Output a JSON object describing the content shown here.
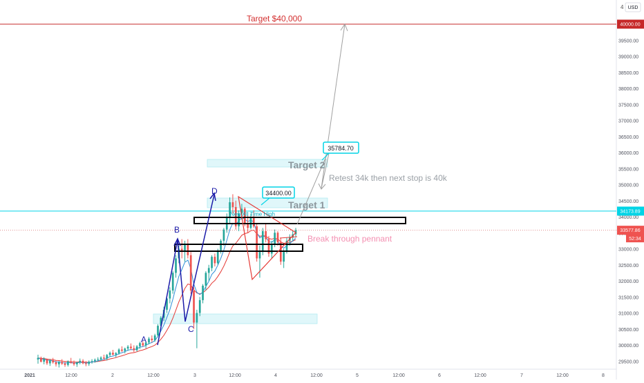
{
  "colors": {
    "up": "#26a69a",
    "down": "#ef5350",
    "ema_fast": "#2e8fd8",
    "ema_slow": "#e53935",
    "target_line": "#c62828",
    "cyan": "#00bcd4",
    "zone_fill": "#e0f7fa",
    "wave": "#1a1aa8",
    "projection": "#9e9e9e",
    "pennant": "#e53935",
    "pennant_text": "#f48fb1"
  },
  "currency_badge": "USD",
  "currency_badge_prefix": "4",
  "price_labels": {
    "target": "40000.00",
    "ath": "34173.89",
    "current": "33577.86",
    "countdown": "52:34"
  },
  "annotations": {
    "target_40k": "Target $40,000",
    "target_2": "Target 2",
    "target_1": "Target 1",
    "retest": "Retest 34k then next stop is 40k",
    "pennant": "Break through pennant",
    "ath_note": "New All Time High",
    "callout_34400": "34400.00",
    "callout_35784": "35784.70",
    "wave_b": "B",
    "wave_c": "C",
    "wave_d": "D",
    "wave_a": "A"
  },
  "chart_data": {
    "type": "candlestick",
    "symbol_currency": "USD",
    "y_ticks": [
      29500,
      30000,
      30500,
      31000,
      31500,
      32000,
      32500,
      33000,
      33500,
      34000,
      34500,
      35000,
      35500,
      36000,
      36500,
      37000,
      37500,
      38000,
      38500,
      39000,
      39500
    ],
    "y_tick_labels": [
      "29500.00",
      "30000.00",
      "30500.00",
      "31000.00",
      "31500.00",
      "32000.00",
      "32500.00",
      "33000.00",
      "33500.00",
      "34000.00",
      "34500.00",
      "35000.00",
      "35500.00",
      "36000.00",
      "36500.00",
      "37000.00",
      "37500.00",
      "38000.00",
      "38500.00",
      "39000.00",
      "39500.00"
    ],
    "ylim": [
      29250,
      40450
    ],
    "x_labels": [
      "2021",
      "12:00",
      "2",
      "12:00",
      "3",
      "12:00",
      "4",
      "12:00",
      "5",
      "12:00",
      "6",
      "12:00",
      "7",
      "12:00",
      "8"
    ],
    "levels": {
      "target": 40000,
      "all_time_high": 34173.89,
      "current_price": 33577.86
    },
    "callouts": [
      34400.0,
      35784.7
    ],
    "candles": [
      [
        29550,
        29700,
        29420,
        29600
      ],
      [
        29600,
        29640,
        29460,
        29480
      ],
      [
        29480,
        29620,
        29400,
        29560
      ],
      [
        29560,
        29580,
        29380,
        29430
      ],
      [
        29430,
        29560,
        29350,
        29520
      ],
      [
        29520,
        29600,
        29420,
        29460
      ],
      [
        29460,
        29520,
        29330,
        29400
      ],
      [
        29400,
        29500,
        29300,
        29470
      ],
      [
        29470,
        29560,
        29380,
        29420
      ],
      [
        29420,
        29480,
        29320,
        29380
      ],
      [
        29380,
        29520,
        29330,
        29490
      ],
      [
        29490,
        29600,
        29420,
        29450
      ],
      [
        29450,
        29520,
        29350,
        29400
      ],
      [
        29400,
        29480,
        29320,
        29460
      ],
      [
        29460,
        29580,
        29400,
        29510
      ],
      [
        29510,
        29560,
        29400,
        29430
      ],
      [
        29430,
        29500,
        29340,
        29410
      ],
      [
        29410,
        29520,
        29350,
        29480
      ],
      [
        29480,
        29560,
        29420,
        29500
      ],
      [
        29500,
        29580,
        29450,
        29540
      ],
      [
        29540,
        29620,
        29480,
        29560
      ],
      [
        29560,
        29650,
        29500,
        29610
      ],
      [
        29610,
        29700,
        29540,
        29580
      ],
      [
        29580,
        29720,
        29520,
        29690
      ],
      [
        29690,
        29800,
        29630,
        29760
      ],
      [
        29760,
        29850,
        29680,
        29700
      ],
      [
        29700,
        29780,
        29620,
        29750
      ],
      [
        29750,
        29900,
        29700,
        29860
      ],
      [
        29860,
        29960,
        29780,
        29820
      ],
      [
        29820,
        29920,
        29740,
        29890
      ],
      [
        29890,
        30000,
        29820,
        29950
      ],
      [
        29950,
        30050,
        29860,
        29900
      ],
      [
        29900,
        29990,
        29780,
        29840
      ],
      [
        29840,
        30000,
        29800,
        29960
      ],
      [
        29960,
        30100,
        29880,
        30060
      ],
      [
        30060,
        30120,
        29950,
        29990
      ],
      [
        29990,
        30100,
        29900,
        30080
      ],
      [
        30080,
        30250,
        30020,
        30200
      ],
      [
        30200,
        30300,
        30080,
        30150
      ],
      [
        30150,
        30350,
        30100,
        30300
      ],
      [
        30300,
        30650,
        30250,
        30600
      ],
      [
        30600,
        30900,
        30500,
        30850
      ],
      [
        30850,
        31200,
        30750,
        31100
      ],
      [
        31100,
        31500,
        31000,
        31450
      ],
      [
        31450,
        31800,
        31300,
        31700
      ],
      [
        31700,
        32300,
        31600,
        32250
      ],
      [
        32250,
        32800,
        32100,
        32700
      ],
      [
        32700,
        33100,
        32550,
        33000
      ],
      [
        33000,
        33300,
        32700,
        32900
      ],
      [
        32900,
        33250,
        32600,
        33150
      ],
      [
        33150,
        33300,
        32700,
        32800
      ],
      [
        32800,
        32900,
        31600,
        31700
      ],
      [
        31700,
        31800,
        30500,
        30700
      ],
      [
        30700,
        31100,
        29900,
        31000
      ],
      [
        31000,
        31500,
        30900,
        31400
      ],
      [
        31400,
        31900,
        31300,
        31850
      ],
      [
        31850,
        32300,
        31700,
        32250
      ],
      [
        32250,
        32500,
        32000,
        32400
      ],
      [
        32400,
        32800,
        32300,
        32750
      ],
      [
        32750,
        32850,
        32450,
        32550
      ],
      [
        32550,
        33000,
        32500,
        32950
      ],
      [
        32950,
        33300,
        32850,
        33250
      ],
      [
        33250,
        33650,
        33100,
        33600
      ],
      [
        33600,
        34100,
        33500,
        34000
      ],
      [
        34000,
        34600,
        33800,
        34450
      ],
      [
        34450,
        34700,
        34100,
        34300
      ],
      [
        34300,
        34500,
        33600,
        33700
      ],
      [
        33700,
        34200,
        33550,
        34100
      ],
      [
        34100,
        34400,
        33900,
        34250
      ],
      [
        34250,
        34300,
        33700,
        33800
      ],
      [
        33800,
        34050,
        33500,
        33650
      ],
      [
        33650,
        34100,
        33600,
        34000
      ],
      [
        34000,
        34200,
        33650,
        33700
      ],
      [
        33700,
        33800,
        32600,
        32700
      ],
      [
        32700,
        33100,
        32100,
        32900
      ],
      [
        32900,
        33650,
        32800,
        33550
      ],
      [
        33550,
        33800,
        33200,
        33300
      ],
      [
        33300,
        33400,
        32750,
        32850
      ],
      [
        32850,
        33250,
        32700,
        33150
      ],
      [
        33150,
        33600,
        33050,
        33500
      ],
      [
        33500,
        33550,
        33100,
        33200
      ],
      [
        33200,
        33350,
        32500,
        32600
      ],
      [
        32600,
        33000,
        32400,
        32900
      ],
      [
        32900,
        33350,
        32850,
        33250
      ],
      [
        33250,
        33450,
        33100,
        33350
      ],
      [
        33350,
        33550,
        33250,
        33450
      ],
      [
        33450,
        33650,
        33380,
        33577.86
      ]
    ],
    "candle_x_start": 55,
    "candle_x_end": 428
  }
}
